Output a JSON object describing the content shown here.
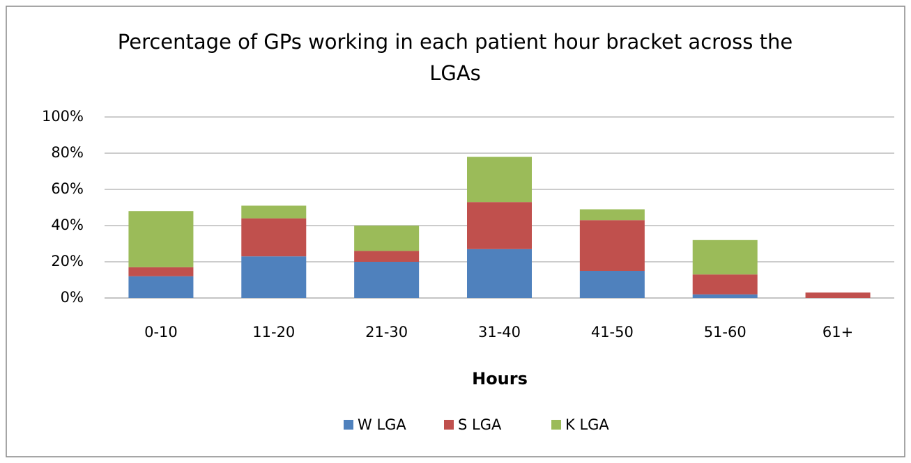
{
  "chart_data": {
    "type": "stacked_bar",
    "title": "Percentage of GPs working in each patient hour bracket across the LGAs",
    "x_label": "Hours",
    "categories": [
      "0-10",
      "11-20",
      "21-30",
      "31-40",
      "41-50",
      "51-60",
      "61+"
    ],
    "series": [
      {
        "name": "W LGA",
        "color": "#4f81bd",
        "values": [
          12,
          23,
          20,
          27,
          15,
          2,
          0
        ]
      },
      {
        "name": "S LGA",
        "color": "#c0504d",
        "values": [
          5,
          21,
          6,
          26,
          28,
          11,
          3
        ]
      },
      {
        "name": "K LGA",
        "color": "#9bbb59",
        "values": [
          31,
          7,
          14,
          25,
          6,
          19,
          0
        ]
      }
    ],
    "ylim": [
      0,
      100
    ],
    "yticks": [
      {
        "value": 0,
        "label": "0%"
      },
      {
        "value": 20,
        "label": "20%"
      },
      {
        "value": 40,
        "label": "40%"
      },
      {
        "value": 60,
        "label": "60%"
      },
      {
        "value": 80,
        "label": "80%"
      },
      {
        "value": 100,
        "label": "100%"
      }
    ],
    "grid": true,
    "legend": "bottom"
  }
}
